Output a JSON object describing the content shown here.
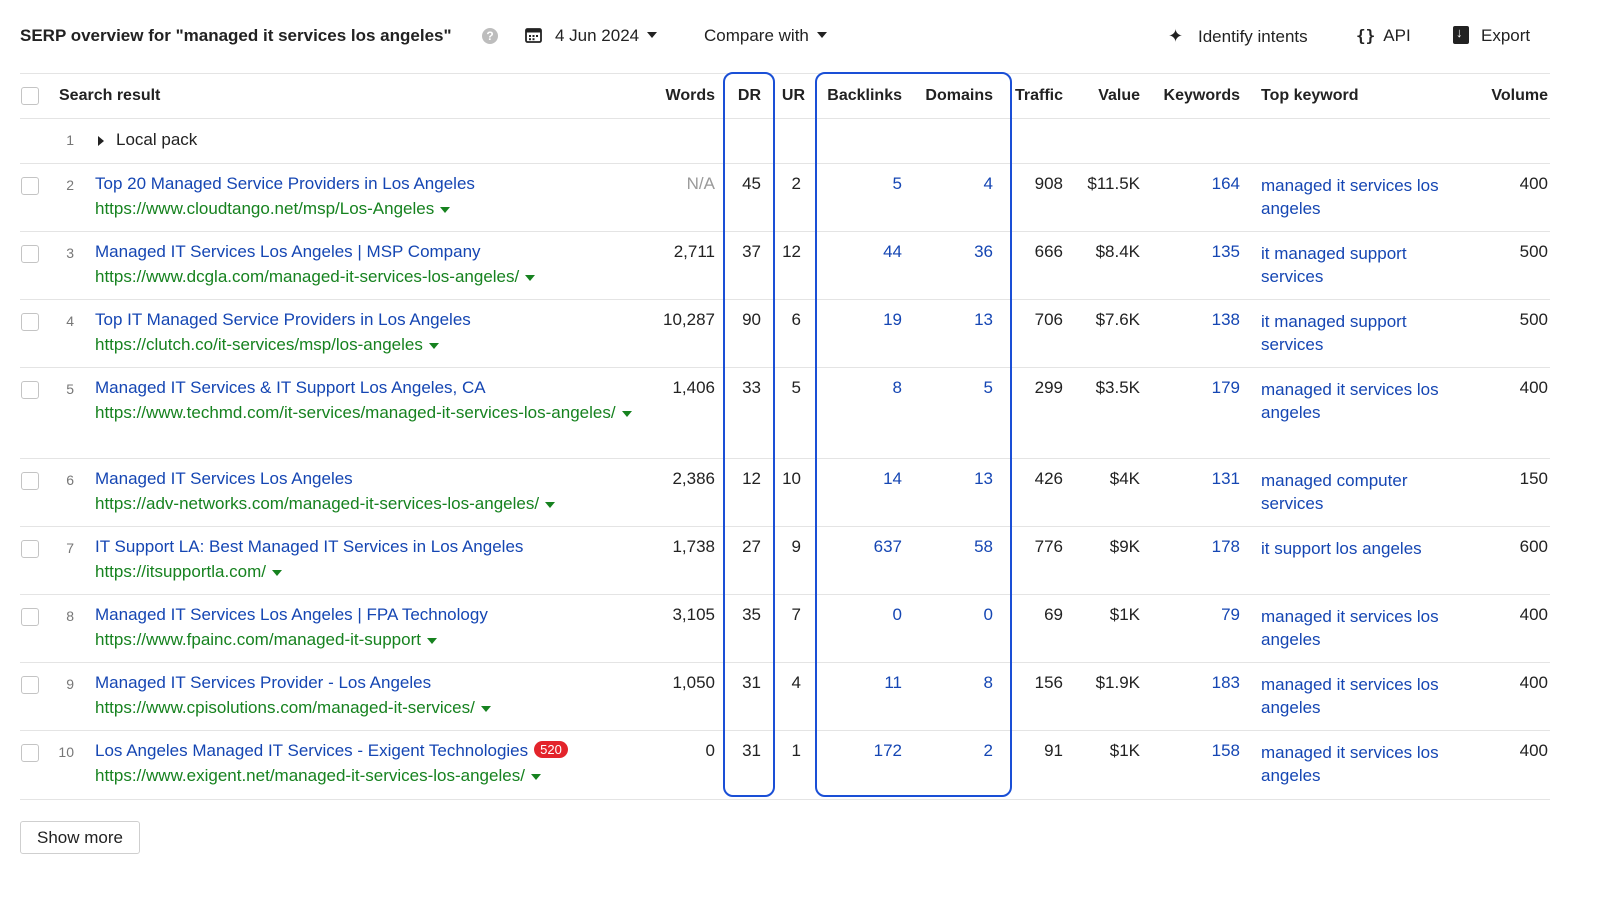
{
  "header": {
    "title": "SERP overview for \"managed it services los angeles\"",
    "date": "4 Jun 2024",
    "compare_label": "Compare with",
    "identify_intents_label": "Identify intents",
    "api_label": "API",
    "export_label": "Export",
    "icons": [
      "help-icon",
      "calendar-icon",
      "sparkle-icon",
      "api-braces-icon",
      "export-icon"
    ]
  },
  "table": {
    "columns": {
      "search_result": "Search result",
      "words": "Words",
      "dr": "DR",
      "ur": "UR",
      "backlinks": "Backlinks",
      "domains": "Domains",
      "traffic": "Traffic",
      "value": "Value",
      "keywords": "Keywords",
      "top_keyword": "Top keyword",
      "volume": "Volume"
    },
    "local_pack": {
      "rank": "1",
      "label": "Local pack"
    },
    "rows": [
      {
        "rank": "2",
        "title": "Top 20 Managed Service Providers in Los Angeles",
        "url": "https://www.cloudtango.net/msp/Los-Angeles",
        "words": "N/A",
        "dr": "45",
        "ur": "2",
        "backlinks": "5",
        "domains": "4",
        "traffic": "908",
        "value": "$11.5K",
        "keywords": "164",
        "top_keyword": "managed it services los angeles",
        "volume": "400"
      },
      {
        "rank": "3",
        "title": "Managed IT Services Los Angeles | MSP Company",
        "url": "https://www.dcgla.com/managed-it-services-los-angeles/",
        "words": "2,711",
        "dr": "37",
        "ur": "12",
        "backlinks": "44",
        "domains": "36",
        "traffic": "666",
        "value": "$8.4K",
        "keywords": "135",
        "top_keyword": "it managed support services",
        "volume": "500"
      },
      {
        "rank": "4",
        "title": "Top IT Managed Service Providers in Los Angeles",
        "url": "https://clutch.co/it-services/msp/los-angeles",
        "words": "10,287",
        "dr": "90",
        "ur": "6",
        "backlinks": "19",
        "domains": "13",
        "traffic": "706",
        "value": "$7.6K",
        "keywords": "138",
        "top_keyword": "it managed support services",
        "volume": "500"
      },
      {
        "rank": "5",
        "title": "Managed IT Services & IT Support Los Angeles, CA",
        "url": "https://www.techmd.com/it-services/managed-it-services-los-angeles/",
        "words": "1,406",
        "dr": "33",
        "ur": "5",
        "backlinks": "8",
        "domains": "5",
        "traffic": "299",
        "value": "$3.5K",
        "keywords": "179",
        "top_keyword": "managed it services los angeles",
        "volume": "400"
      },
      {
        "rank": "6",
        "title": "Managed IT Services Los Angeles",
        "url": "https://adv-networks.com/managed-it-services-los-angeles/",
        "words": "2,386",
        "dr": "12",
        "ur": "10",
        "backlinks": "14",
        "domains": "13",
        "traffic": "426",
        "value": "$4K",
        "keywords": "131",
        "top_keyword": "managed computer services",
        "volume": "150"
      },
      {
        "rank": "7",
        "title": "IT Support LA: Best Managed IT Services in Los Angeles",
        "url": "https://itsupportla.com/",
        "words": "1,738",
        "dr": "27",
        "ur": "9",
        "backlinks": "637",
        "domains": "58",
        "traffic": "776",
        "value": "$9K",
        "keywords": "178",
        "top_keyword": "it support los angeles",
        "volume": "600"
      },
      {
        "rank": "8",
        "title": "Managed IT Services Los Angeles | FPA Technology",
        "url": "https://www.fpainc.com/managed-it-support",
        "words": "3,105",
        "dr": "35",
        "ur": "7",
        "backlinks": "0",
        "domains": "0",
        "traffic": "69",
        "value": "$1K",
        "keywords": "79",
        "top_keyword": "managed it services los angeles",
        "volume": "400"
      },
      {
        "rank": "9",
        "title": "Managed IT Services Provider - Los Angeles",
        "url": "https://www.cpisolutions.com/managed-it-services/",
        "words": "1,050",
        "dr": "31",
        "ur": "4",
        "backlinks": "11",
        "domains": "8",
        "traffic": "156",
        "value": "$1.9K",
        "keywords": "183",
        "top_keyword": "managed it services los angeles",
        "volume": "400"
      },
      {
        "rank": "10",
        "title": "Los Angeles Managed IT Services - Exigent Technologies",
        "badge": "520",
        "url": "https://www.exigent.net/managed-it-services-los-angeles/",
        "words": "0",
        "dr": "31",
        "ur": "1",
        "backlinks": "172",
        "domains": "2",
        "traffic": "91",
        "value": "$1K",
        "keywords": "158",
        "top_keyword": "managed it services los angeles",
        "volume": "400"
      }
    ]
  },
  "footer": {
    "show_more_label": "Show more"
  },
  "colors": {
    "link_blue": "#1546b3",
    "url_green": "#16821f",
    "highlight_border": "#1a4fd6",
    "badge_red": "#e3242b"
  }
}
